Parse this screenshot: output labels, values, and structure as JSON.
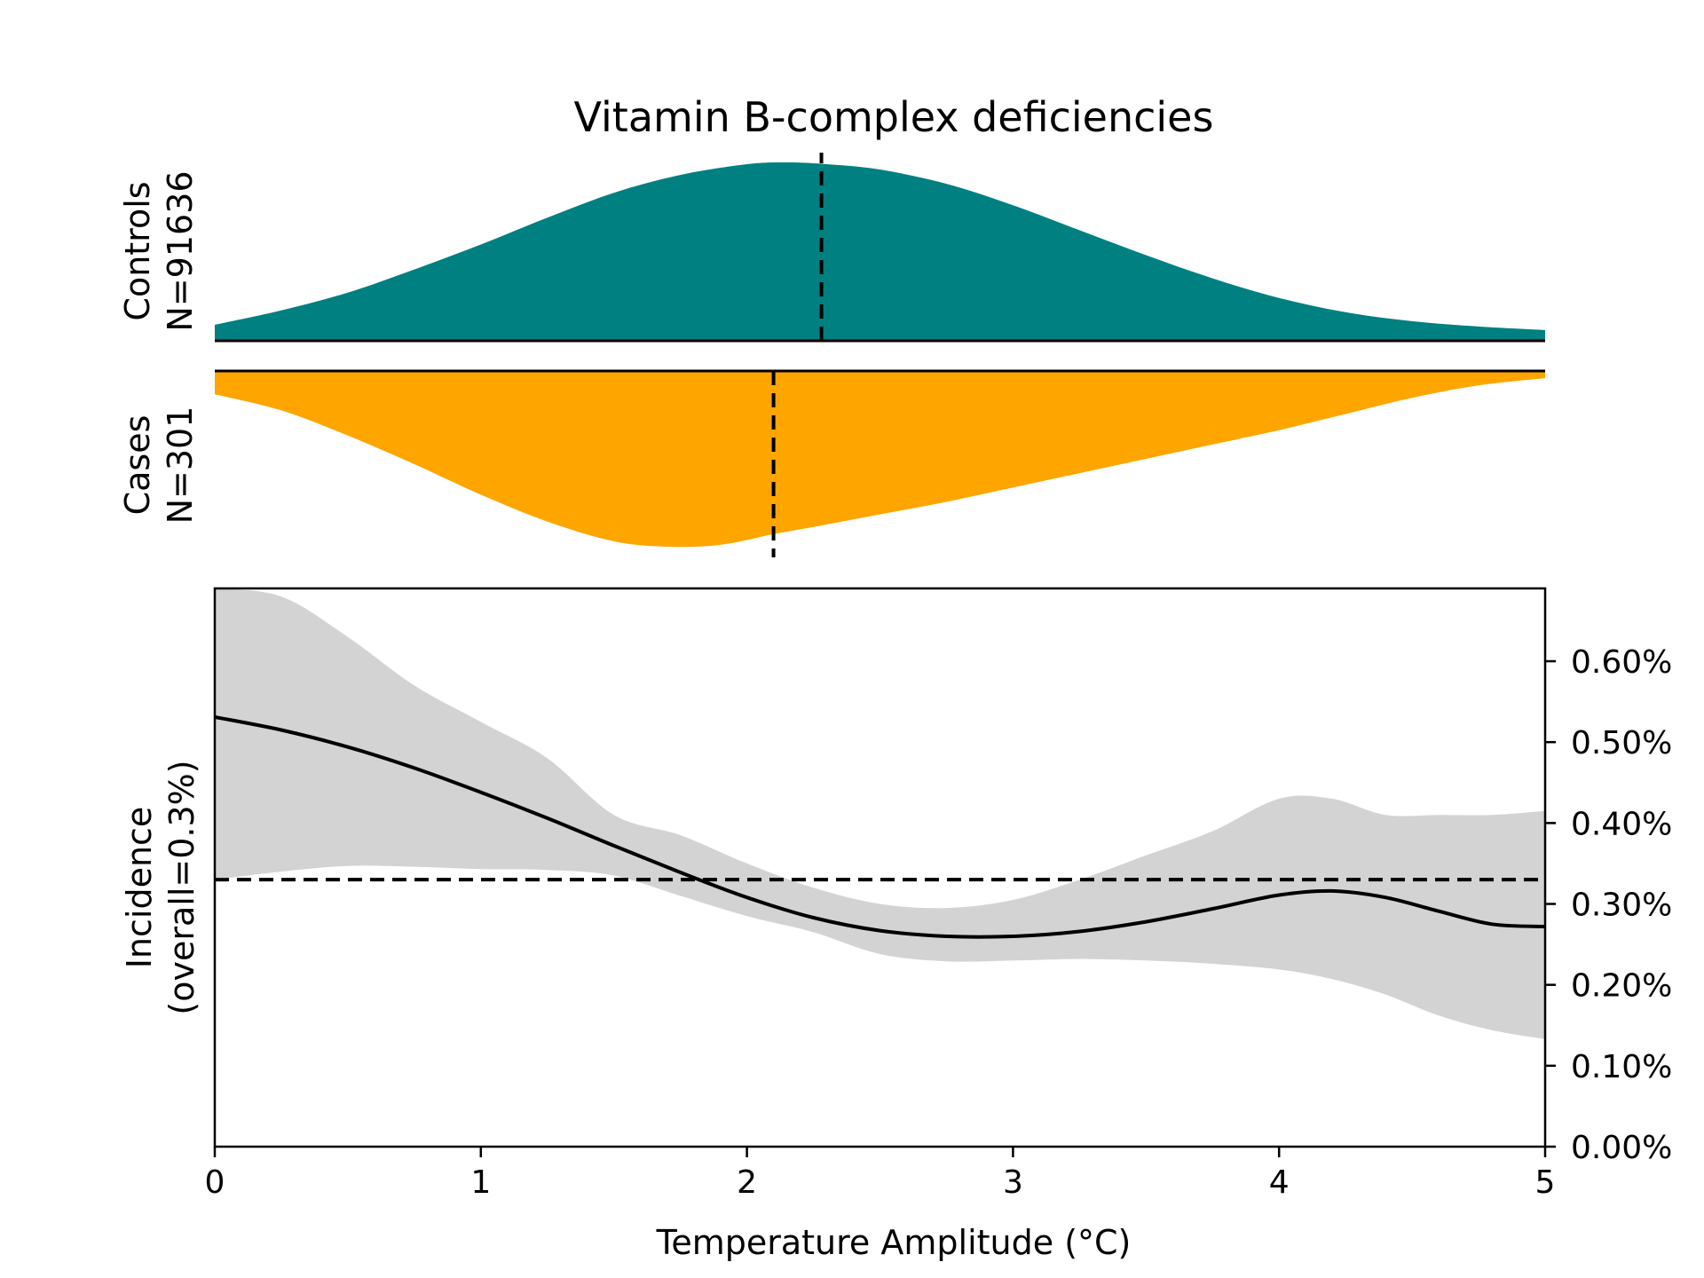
{
  "chart_data": {
    "type": "area",
    "title": "Vitamin B-complex deficiencies",
    "xlabel": "Temperature Amplitude (°C)",
    "xlim": [
      0,
      5
    ],
    "x_ticks": [
      0,
      1,
      2,
      3,
      4,
      5
    ],
    "colors": {
      "controls": "#008080",
      "cases": "#FFA500",
      "ci": "#d3d3d3",
      "line": "#000000"
    },
    "controls": {
      "label_line1": "Controls",
      "label_line2": "N=91636",
      "mean": 2.28,
      "density": {
        "x": [
          0,
          0.25,
          0.5,
          0.75,
          1.0,
          1.25,
          1.5,
          1.75,
          2.0,
          2.15,
          2.3,
          2.5,
          2.75,
          3.0,
          3.25,
          3.5,
          3.75,
          4.0,
          4.25,
          4.5,
          4.75,
          5.0
        ],
        "y": [
          0.09,
          0.17,
          0.27,
          0.4,
          0.54,
          0.69,
          0.83,
          0.93,
          0.99,
          1.0,
          0.99,
          0.96,
          0.88,
          0.76,
          0.62,
          0.48,
          0.35,
          0.24,
          0.16,
          0.11,
          0.08,
          0.06
        ]
      }
    },
    "cases": {
      "label_line1": "Cases",
      "label_line2": "N=301",
      "mean": 2.1,
      "density": {
        "x": [
          0,
          0.25,
          0.5,
          0.75,
          1.0,
          1.25,
          1.5,
          1.7,
          1.9,
          2.1,
          2.25,
          2.5,
          2.75,
          3.0,
          3.25,
          3.5,
          3.75,
          4.0,
          4.25,
          4.5,
          4.75,
          5.0
        ],
        "y": [
          0.13,
          0.22,
          0.36,
          0.52,
          0.69,
          0.84,
          0.95,
          0.98,
          0.97,
          0.91,
          0.87,
          0.8,
          0.73,
          0.65,
          0.57,
          0.49,
          0.41,
          0.33,
          0.24,
          0.15,
          0.08,
          0.04
        ]
      }
    },
    "incidence": {
      "ylabel_line1": "Incidence",
      "ylabel_line2": "(overall=0.3%)",
      "overall": 0.33,
      "ylim": [
        0,
        0.69
      ],
      "y_ticks": [
        0.0,
        0.1,
        0.2,
        0.3,
        0.4,
        0.5,
        0.6
      ],
      "y_tick_labels": [
        "0.00%",
        "0.10%",
        "0.20%",
        "0.30%",
        "0.40%",
        "0.50%",
        "0.60%"
      ],
      "x": [
        0,
        0.25,
        0.5,
        0.75,
        1.0,
        1.25,
        1.5,
        1.75,
        2.0,
        2.25,
        2.5,
        2.75,
        3.0,
        3.25,
        3.5,
        3.75,
        4.0,
        4.2,
        4.4,
        4.6,
        4.8,
        5.0
      ],
      "y": [
        0.531,
        0.515,
        0.494,
        0.468,
        0.438,
        0.406,
        0.372,
        0.339,
        0.308,
        0.283,
        0.267,
        0.26,
        0.26,
        0.266,
        0.278,
        0.294,
        0.311,
        0.316,
        0.308,
        0.291,
        0.275,
        0.272
      ],
      "upper": [
        0.7,
        0.68,
        0.63,
        0.57,
        0.525,
        0.48,
        0.41,
        0.385,
        0.35,
        0.32,
        0.3,
        0.295,
        0.305,
        0.33,
        0.36,
        0.39,
        0.43,
        0.43,
        0.41,
        0.41,
        0.41,
        0.415
      ],
      "lower": [
        0.33,
        0.34,
        0.347,
        0.346,
        0.343,
        0.342,
        0.335,
        0.31,
        0.285,
        0.265,
        0.238,
        0.229,
        0.23,
        0.232,
        0.23,
        0.226,
        0.219,
        0.207,
        0.188,
        0.162,
        0.144,
        0.133
      ]
    }
  }
}
